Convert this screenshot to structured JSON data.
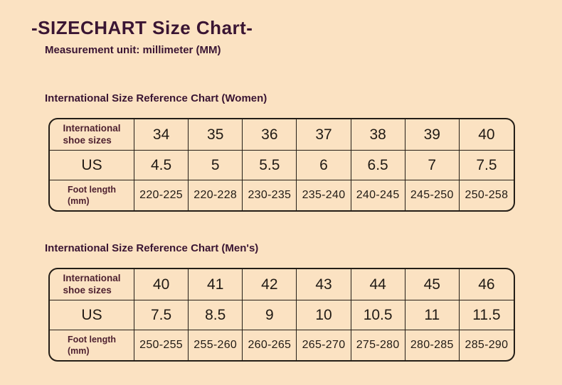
{
  "page": {
    "title": "-SIZECHART Size Chart-",
    "subtitle": "Measurement unit: millimeter (MM)"
  },
  "colors": {
    "background": "#fbe2c2",
    "heading_text": "#3a1533",
    "table_border": "#241e17",
    "cell_text": "#211b15",
    "row_label_text": "#4e2130"
  },
  "women_chart": {
    "heading": "International Size Reference Chart (Women)",
    "row_labels": [
      "International\nshoe sizes",
      "US",
      "Foot length\n(mm)"
    ],
    "sizes": [
      "34",
      "35",
      "36",
      "37",
      "38",
      "39",
      "40"
    ],
    "us": [
      "4.5",
      "5",
      "5.5",
      "6",
      "6.5",
      "7",
      "7.5"
    ],
    "foot_length": [
      "220-225",
      "220-228",
      "230-235",
      "235-240",
      "240-245",
      "245-250",
      "250-258"
    ]
  },
  "men_chart": {
    "heading": "International Size Reference Chart (Men's)",
    "row_labels": [
      "International\nshoe sizes",
      "US",
      "Foot length\n(mm)"
    ],
    "sizes": [
      "40",
      "41",
      "42",
      "43",
      "44",
      "45",
      "46"
    ],
    "us": [
      "7.5",
      "8.5",
      "9",
      "10",
      "10.5",
      "11",
      "11.5"
    ],
    "foot_length": [
      "250-255",
      "255-260",
      "260-265",
      "265-270",
      "275-280",
      "280-285",
      "285-290"
    ]
  },
  "chart_data": [
    {
      "type": "table",
      "title": "International Size Reference Chart (Women)",
      "row_headers": [
        "International shoe sizes",
        "US",
        "Foot length (mm)"
      ],
      "rows": [
        [
          "34",
          "35",
          "36",
          "37",
          "38",
          "39",
          "40"
        ],
        [
          "4.5",
          "5",
          "5.5",
          "6",
          "6.5",
          "7",
          "7.5"
        ],
        [
          "220-225",
          "220-228",
          "230-235",
          "235-240",
          "240-245",
          "245-250",
          "250-258"
        ]
      ]
    },
    {
      "type": "table",
      "title": "International Size Reference Chart (Men's)",
      "row_headers": [
        "International shoe sizes",
        "US",
        "Foot length (mm)"
      ],
      "rows": [
        [
          "40",
          "41",
          "42",
          "43",
          "44",
          "45",
          "46"
        ],
        [
          "7.5",
          "8.5",
          "9",
          "10",
          "10.5",
          "11",
          "11.5"
        ],
        [
          "250-255",
          "255-260",
          "260-265",
          "265-270",
          "275-280",
          "280-285",
          "285-290"
        ]
      ]
    }
  ]
}
